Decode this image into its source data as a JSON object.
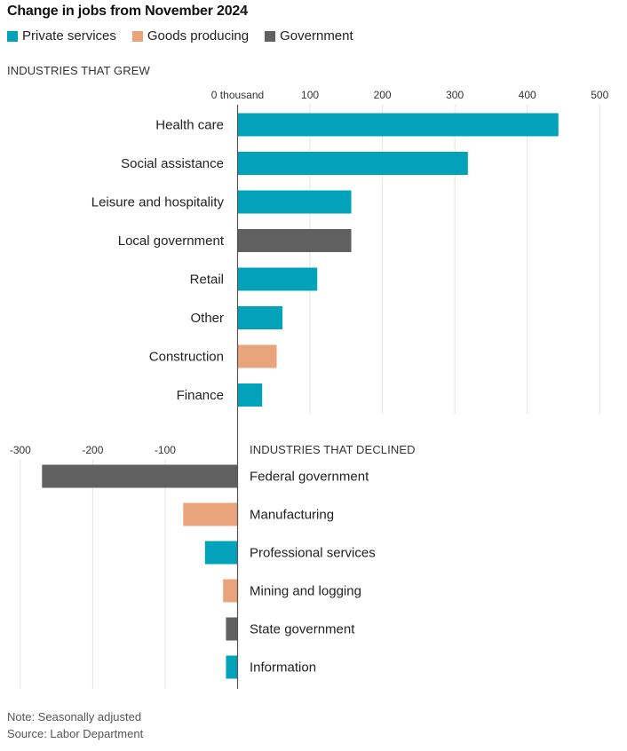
{
  "chart_data": {
    "type": "bar",
    "orientation": "horizontal",
    "title": "Change in jobs from November 2024",
    "legend": [
      {
        "name": "Private services",
        "color": "#02a2ba"
      },
      {
        "name": "Goods producing",
        "color": "#e9a47b"
      },
      {
        "name": "Government",
        "color": "#606060"
      }
    ],
    "legend_placement": "top-left",
    "unit": "thousand",
    "panels": [
      {
        "label": "INDUSTRIES THAT GREW",
        "xlim": [
          0,
          500
        ],
        "ticks": [
          0,
          100,
          200,
          300,
          400,
          500
        ],
        "tick_labels": [
          "0 thousand",
          "100",
          "200",
          "300",
          "400",
          "500"
        ],
        "grid": true,
        "categories": [
          "Health care",
          "Social assistance",
          "Leisure and hospitality",
          "Local government",
          "Retail",
          "Other",
          "Construction",
          "Finance"
        ],
        "values": [
          443,
          318,
          157,
          157,
          110,
          62,
          54,
          34
        ],
        "groups": [
          "Private services",
          "Private services",
          "Private services",
          "Government",
          "Private services",
          "Private services",
          "Goods producing",
          "Private services"
        ]
      },
      {
        "label": "INDUSTRIES THAT DECLINED",
        "xlim": [
          -300,
          0
        ],
        "ticks": [
          -300,
          -200,
          -100
        ],
        "tick_labels": [
          "-300",
          "-200",
          "-100"
        ],
        "grid": true,
        "categories": [
          "Federal government",
          "Manufacturing",
          "Professional services",
          "Mining and logging",
          "State government",
          "Information"
        ],
        "values": [
          -270,
          -75,
          -45,
          -20,
          -16,
          -16
        ],
        "groups": [
          "Government",
          "Goods producing",
          "Private services",
          "Goods producing",
          "Government",
          "Private services"
        ]
      }
    ]
  },
  "footer": {
    "note": "Note: Seasonally adjusted",
    "source": "Source: Labor Department"
  }
}
